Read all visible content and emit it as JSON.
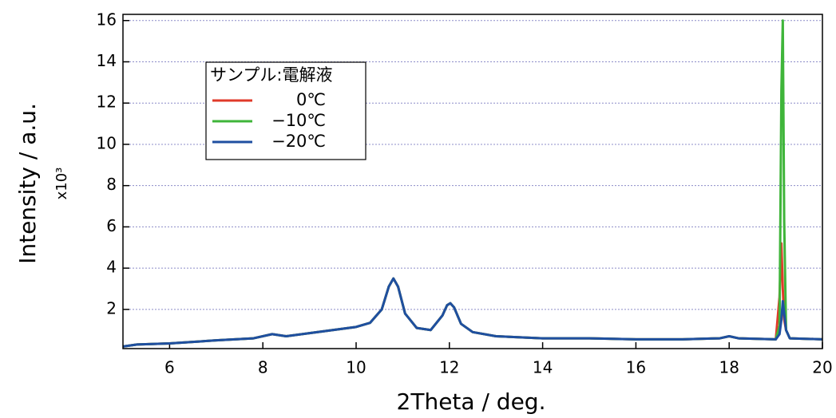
{
  "chart_data": {
    "type": "line",
    "x_label": "2Theta / deg.",
    "y_label": "Intensity / a.u.",
    "y_multiplier": "x10³",
    "legend_title": "サンプル:電解液",
    "legend": "upper-left",
    "grid": true,
    "xlim": [
      5,
      20
    ],
    "ylim": [
      0.1,
      16.3
    ],
    "xticks": [
      6,
      8,
      10,
      12,
      14,
      16,
      18,
      20
    ],
    "yticks": [
      2,
      4,
      6,
      8,
      10,
      12,
      14,
      16
    ],
    "x": [
      5,
      5.3,
      6,
      7,
      7.8,
      8.2,
      8.5,
      9,
      9.5,
      10,
      10.3,
      10.55,
      10.7,
      10.8,
      10.9,
      11.05,
      11.3,
      11.6,
      11.85,
      11.95,
      12.02,
      12.1,
      12.25,
      12.5,
      13,
      14,
      15,
      16,
      17,
      17.8,
      18,
      18.2,
      19,
      19.08,
      19.12,
      19.15,
      19.18,
      19.22,
      19.3,
      20
    ],
    "series": [
      {
        "name": "0℃",
        "color": "#e03a2a",
        "values": [
          0.2,
          0.3,
          0.35,
          0.5,
          0.6,
          0.8,
          0.7,
          0.85,
          1.0,
          1.15,
          1.35,
          2.0,
          3.1,
          3.5,
          3.1,
          1.8,
          1.1,
          1.0,
          1.7,
          2.2,
          2.3,
          2.1,
          1.3,
          0.9,
          0.7,
          0.6,
          0.6,
          0.55,
          0.55,
          0.6,
          0.7,
          0.6,
          0.55,
          2.6,
          5.2,
          3.0,
          1.5,
          1.0,
          0.6,
          0.55
        ]
      },
      {
        "name": "−10℃",
        "color": "#3fb53a",
        "values": [
          0.2,
          0.3,
          0.35,
          0.5,
          0.6,
          0.8,
          0.7,
          0.85,
          1.0,
          1.15,
          1.35,
          2.0,
          3.1,
          3.5,
          3.1,
          1.8,
          1.1,
          1.0,
          1.7,
          2.2,
          2.3,
          2.1,
          1.3,
          0.9,
          0.7,
          0.6,
          0.6,
          0.55,
          0.55,
          0.6,
          0.7,
          0.6,
          0.55,
          1.2,
          12.6,
          16.0,
          6.3,
          1.0,
          0.6,
          0.55
        ]
      },
      {
        "name": "−20℃",
        "color": "#1f4fa0",
        "values": [
          0.2,
          0.3,
          0.35,
          0.5,
          0.6,
          0.8,
          0.7,
          0.85,
          1.0,
          1.15,
          1.35,
          2.0,
          3.1,
          3.5,
          3.1,
          1.8,
          1.1,
          1.0,
          1.7,
          2.2,
          2.3,
          2.1,
          1.3,
          0.9,
          0.7,
          0.6,
          0.6,
          0.55,
          0.55,
          0.6,
          0.7,
          0.6,
          0.55,
          0.8,
          1.5,
          2.4,
          1.8,
          1.0,
          0.6,
          0.55
        ]
      }
    ]
  }
}
